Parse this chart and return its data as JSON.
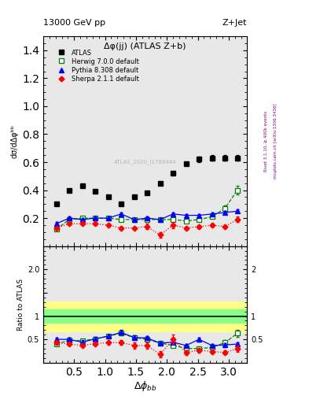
{
  "title_top": "13000 GeV pp",
  "title_right": "Z+Jet",
  "plot_title": "Δφ(jj) (ATLAS Z+b)",
  "xlabel": "Δφᵇᵇ",
  "ylabel_main": "dσ/dΔφᵇᵇ",
  "ylabel_ratio": "Ratio to ATLAS",
  "right_label1": "Rivet 3.1.10, ≥ 400k events",
  "right_label2": "mcplots.cern.ch [arXiv:1306.3436]",
  "watermark": "ATLAS_2020_I1788444",
  "atlas_x": [
    0.21,
    0.42,
    0.63,
    0.84,
    1.05,
    1.26,
    1.47,
    1.68,
    1.89,
    2.1,
    2.31,
    2.52,
    2.73,
    2.94,
    3.14
  ],
  "atlas_y": [
    0.3,
    0.4,
    0.43,
    0.39,
    0.35,
    0.3,
    0.35,
    0.38,
    0.45,
    0.52,
    0.59,
    0.62,
    0.63,
    0.63,
    0.63
  ],
  "atlas_yerr": [
    0.01,
    0.01,
    0.01,
    0.01,
    0.01,
    0.01,
    0.01,
    0.01,
    0.01,
    0.01,
    0.01,
    0.02,
    0.02,
    0.02,
    0.02
  ],
  "herwig_x": [
    0.21,
    0.42,
    0.63,
    0.84,
    1.05,
    1.26,
    1.47,
    1.68,
    1.89,
    2.1,
    2.31,
    2.52,
    2.73,
    2.94,
    3.14
  ],
  "herwig_y": [
    0.12,
    0.19,
    0.2,
    0.2,
    0.2,
    0.19,
    0.19,
    0.19,
    0.19,
    0.19,
    0.18,
    0.19,
    0.21,
    0.27,
    0.4
  ],
  "herwig_yerr": [
    0.01,
    0.01,
    0.01,
    0.01,
    0.01,
    0.01,
    0.01,
    0.01,
    0.01,
    0.01,
    0.01,
    0.01,
    0.01,
    0.02,
    0.03
  ],
  "pythia_x": [
    0.21,
    0.42,
    0.63,
    0.84,
    1.05,
    1.26,
    1.47,
    1.68,
    1.89,
    2.1,
    2.31,
    2.52,
    2.73,
    2.94,
    3.14
  ],
  "pythia_y": [
    0.16,
    0.2,
    0.19,
    0.2,
    0.2,
    0.23,
    0.19,
    0.2,
    0.19,
    0.23,
    0.22,
    0.22,
    0.23,
    0.24,
    0.25
  ],
  "pythia_yerr": [
    0.01,
    0.01,
    0.01,
    0.01,
    0.01,
    0.01,
    0.01,
    0.01,
    0.01,
    0.01,
    0.01,
    0.01,
    0.01,
    0.01,
    0.01
  ],
  "sherpa_x": [
    0.21,
    0.42,
    0.63,
    0.84,
    1.05,
    1.26,
    1.47,
    1.68,
    1.89,
    2.1,
    2.31,
    2.52,
    2.73,
    2.94,
    3.14
  ],
  "sherpa_y": [
    0.13,
    0.16,
    0.16,
    0.16,
    0.15,
    0.13,
    0.13,
    0.14,
    0.08,
    0.15,
    0.13,
    0.14,
    0.15,
    0.14,
    0.19
  ],
  "sherpa_yerr": [
    0.01,
    0.01,
    0.01,
    0.01,
    0.01,
    0.01,
    0.01,
    0.02,
    0.02,
    0.02,
    0.01,
    0.01,
    0.01,
    0.01,
    0.02
  ],
  "herwig_ratio": [
    0.4,
    0.48,
    0.47,
    0.51,
    0.57,
    0.63,
    0.54,
    0.5,
    0.42,
    0.37,
    0.31,
    0.3,
    0.33,
    0.43,
    0.63
  ],
  "pythia_ratio": [
    0.5,
    0.5,
    0.44,
    0.51,
    0.57,
    0.65,
    0.54,
    0.53,
    0.42,
    0.44,
    0.37,
    0.5,
    0.37,
    0.38,
    0.4
  ],
  "sherpa_ratio": [
    0.43,
    0.4,
    0.37,
    0.41,
    0.43,
    0.43,
    0.37,
    0.37,
    0.18,
    0.5,
    0.22,
    0.27,
    0.24,
    0.22,
    0.3
  ],
  "herwig_ratio_yerr": [
    0.04,
    0.04,
    0.04,
    0.04,
    0.04,
    0.05,
    0.04,
    0.04,
    0.04,
    0.04,
    0.04,
    0.04,
    0.04,
    0.06,
    0.08
  ],
  "pythia_ratio_yerr": [
    0.04,
    0.04,
    0.04,
    0.04,
    0.04,
    0.05,
    0.04,
    0.04,
    0.04,
    0.04,
    0.04,
    0.04,
    0.04,
    0.04,
    0.04
  ],
  "sherpa_ratio_yerr": [
    0.04,
    0.04,
    0.04,
    0.04,
    0.04,
    0.05,
    0.07,
    0.07,
    0.07,
    0.1,
    0.05,
    0.05,
    0.04,
    0.04,
    0.06
  ],
  "green_band_lo": 0.85,
  "green_band_hi": 1.15,
  "yellow_band_lo": 0.68,
  "yellow_band_hi": 1.32,
  "xlim": [
    0.0,
    3.3
  ],
  "ylim_main": [
    0.0,
    1.5
  ],
  "ylim_ratio": [
    0.0,
    2.5
  ],
  "yticks_main": [
    0.2,
    0.4,
    0.6,
    0.8,
    1.0,
    1.2,
    1.4
  ],
  "yticks_ratio_left": [
    0.5,
    1.0,
    1.5,
    2.0
  ],
  "yticks_ratio_right": [
    0.5,
    1.0,
    2.0
  ],
  "ytick_ratio_right_labels": [
    "0.5",
    "1",
    "2"
  ],
  "xticks": [
    0.5,
    1.0,
    1.5,
    2.0,
    2.5,
    3.0
  ],
  "atlas_color": "#000000",
  "herwig_color": "#008000",
  "pythia_color": "#0000ff",
  "sherpa_color": "#ff0000",
  "bg_color": "#e8e8e8"
}
